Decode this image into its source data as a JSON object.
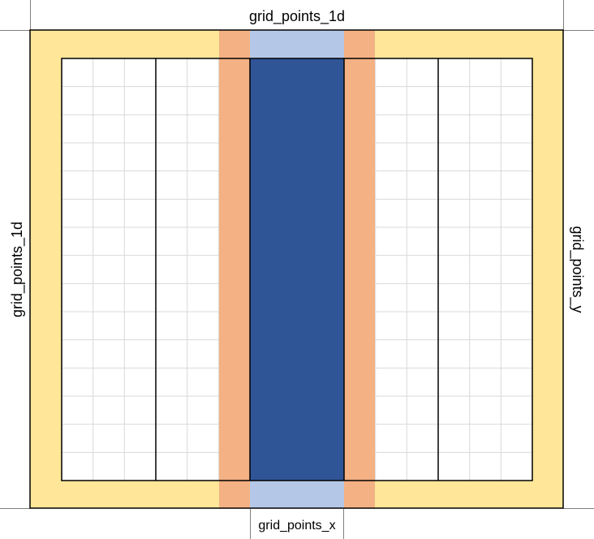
{
  "labels": {
    "top": "grid_points_1d",
    "left": "grid_points_1d",
    "right": "grid_points_y",
    "bottom": "grid_points_x"
  },
  "colors": {
    "outer_border": "#ffe699",
    "halo": "#f4b183",
    "light_band": "#b4c7e7",
    "core": "#2f5597",
    "grid_line": "#d9d9d9",
    "frame_line": "#000000",
    "background": "#ffffff"
  },
  "grid": {
    "columns": 15,
    "rows": 15,
    "block_columns": 3
  }
}
